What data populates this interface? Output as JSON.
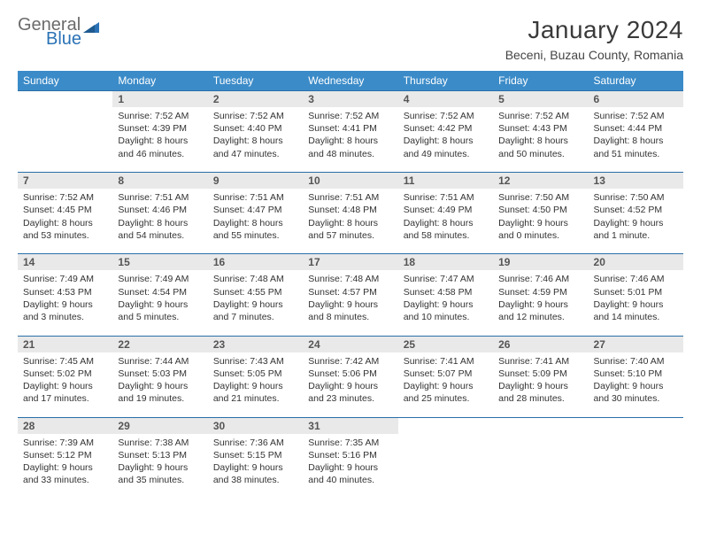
{
  "logo": {
    "text1": "General",
    "text2": "Blue"
  },
  "title": "January 2024",
  "location": "Beceni, Buzau County, Romania",
  "colors": {
    "header_bg": "#3b8bc8",
    "header_text": "#ffffff",
    "daynum_bg": "#e9e9e9",
    "border": "#2a6fa8",
    "logo_gray": "#6b6b6b",
    "logo_blue": "#2a72b5"
  },
  "day_headers": [
    "Sunday",
    "Monday",
    "Tuesday",
    "Wednesday",
    "Thursday",
    "Friday",
    "Saturday"
  ],
  "weeks": [
    {
      "nums": [
        "",
        "1",
        "2",
        "3",
        "4",
        "5",
        "6"
      ],
      "cells": [
        "",
        "Sunrise: 7:52 AM\nSunset: 4:39 PM\nDaylight: 8 hours and 46 minutes.",
        "Sunrise: 7:52 AM\nSunset: 4:40 PM\nDaylight: 8 hours and 47 minutes.",
        "Sunrise: 7:52 AM\nSunset: 4:41 PM\nDaylight: 8 hours and 48 minutes.",
        "Sunrise: 7:52 AM\nSunset: 4:42 PM\nDaylight: 8 hours and 49 minutes.",
        "Sunrise: 7:52 AM\nSunset: 4:43 PM\nDaylight: 8 hours and 50 minutes.",
        "Sunrise: 7:52 AM\nSunset: 4:44 PM\nDaylight: 8 hours and 51 minutes."
      ]
    },
    {
      "nums": [
        "7",
        "8",
        "9",
        "10",
        "11",
        "12",
        "13"
      ],
      "cells": [
        "Sunrise: 7:52 AM\nSunset: 4:45 PM\nDaylight: 8 hours and 53 minutes.",
        "Sunrise: 7:51 AM\nSunset: 4:46 PM\nDaylight: 8 hours and 54 minutes.",
        "Sunrise: 7:51 AM\nSunset: 4:47 PM\nDaylight: 8 hours and 55 minutes.",
        "Sunrise: 7:51 AM\nSunset: 4:48 PM\nDaylight: 8 hours and 57 minutes.",
        "Sunrise: 7:51 AM\nSunset: 4:49 PM\nDaylight: 8 hours and 58 minutes.",
        "Sunrise: 7:50 AM\nSunset: 4:50 PM\nDaylight: 9 hours and 0 minutes.",
        "Sunrise: 7:50 AM\nSunset: 4:52 PM\nDaylight: 9 hours and 1 minute."
      ]
    },
    {
      "nums": [
        "14",
        "15",
        "16",
        "17",
        "18",
        "19",
        "20"
      ],
      "cells": [
        "Sunrise: 7:49 AM\nSunset: 4:53 PM\nDaylight: 9 hours and 3 minutes.",
        "Sunrise: 7:49 AM\nSunset: 4:54 PM\nDaylight: 9 hours and 5 minutes.",
        "Sunrise: 7:48 AM\nSunset: 4:55 PM\nDaylight: 9 hours and 7 minutes.",
        "Sunrise: 7:48 AM\nSunset: 4:57 PM\nDaylight: 9 hours and 8 minutes.",
        "Sunrise: 7:47 AM\nSunset: 4:58 PM\nDaylight: 9 hours and 10 minutes.",
        "Sunrise: 7:46 AM\nSunset: 4:59 PM\nDaylight: 9 hours and 12 minutes.",
        "Sunrise: 7:46 AM\nSunset: 5:01 PM\nDaylight: 9 hours and 14 minutes."
      ]
    },
    {
      "nums": [
        "21",
        "22",
        "23",
        "24",
        "25",
        "26",
        "27"
      ],
      "cells": [
        "Sunrise: 7:45 AM\nSunset: 5:02 PM\nDaylight: 9 hours and 17 minutes.",
        "Sunrise: 7:44 AM\nSunset: 5:03 PM\nDaylight: 9 hours and 19 minutes.",
        "Sunrise: 7:43 AM\nSunset: 5:05 PM\nDaylight: 9 hours and 21 minutes.",
        "Sunrise: 7:42 AM\nSunset: 5:06 PM\nDaylight: 9 hours and 23 minutes.",
        "Sunrise: 7:41 AM\nSunset: 5:07 PM\nDaylight: 9 hours and 25 minutes.",
        "Sunrise: 7:41 AM\nSunset: 5:09 PM\nDaylight: 9 hours and 28 minutes.",
        "Sunrise: 7:40 AM\nSunset: 5:10 PM\nDaylight: 9 hours and 30 minutes."
      ]
    },
    {
      "nums": [
        "28",
        "29",
        "30",
        "31",
        "",
        "",
        ""
      ],
      "cells": [
        "Sunrise: 7:39 AM\nSunset: 5:12 PM\nDaylight: 9 hours and 33 minutes.",
        "Sunrise: 7:38 AM\nSunset: 5:13 PM\nDaylight: 9 hours and 35 minutes.",
        "Sunrise: 7:36 AM\nSunset: 5:15 PM\nDaylight: 9 hours and 38 minutes.",
        "Sunrise: 7:35 AM\nSunset: 5:16 PM\nDaylight: 9 hours and 40 minutes.",
        "",
        "",
        ""
      ]
    }
  ]
}
